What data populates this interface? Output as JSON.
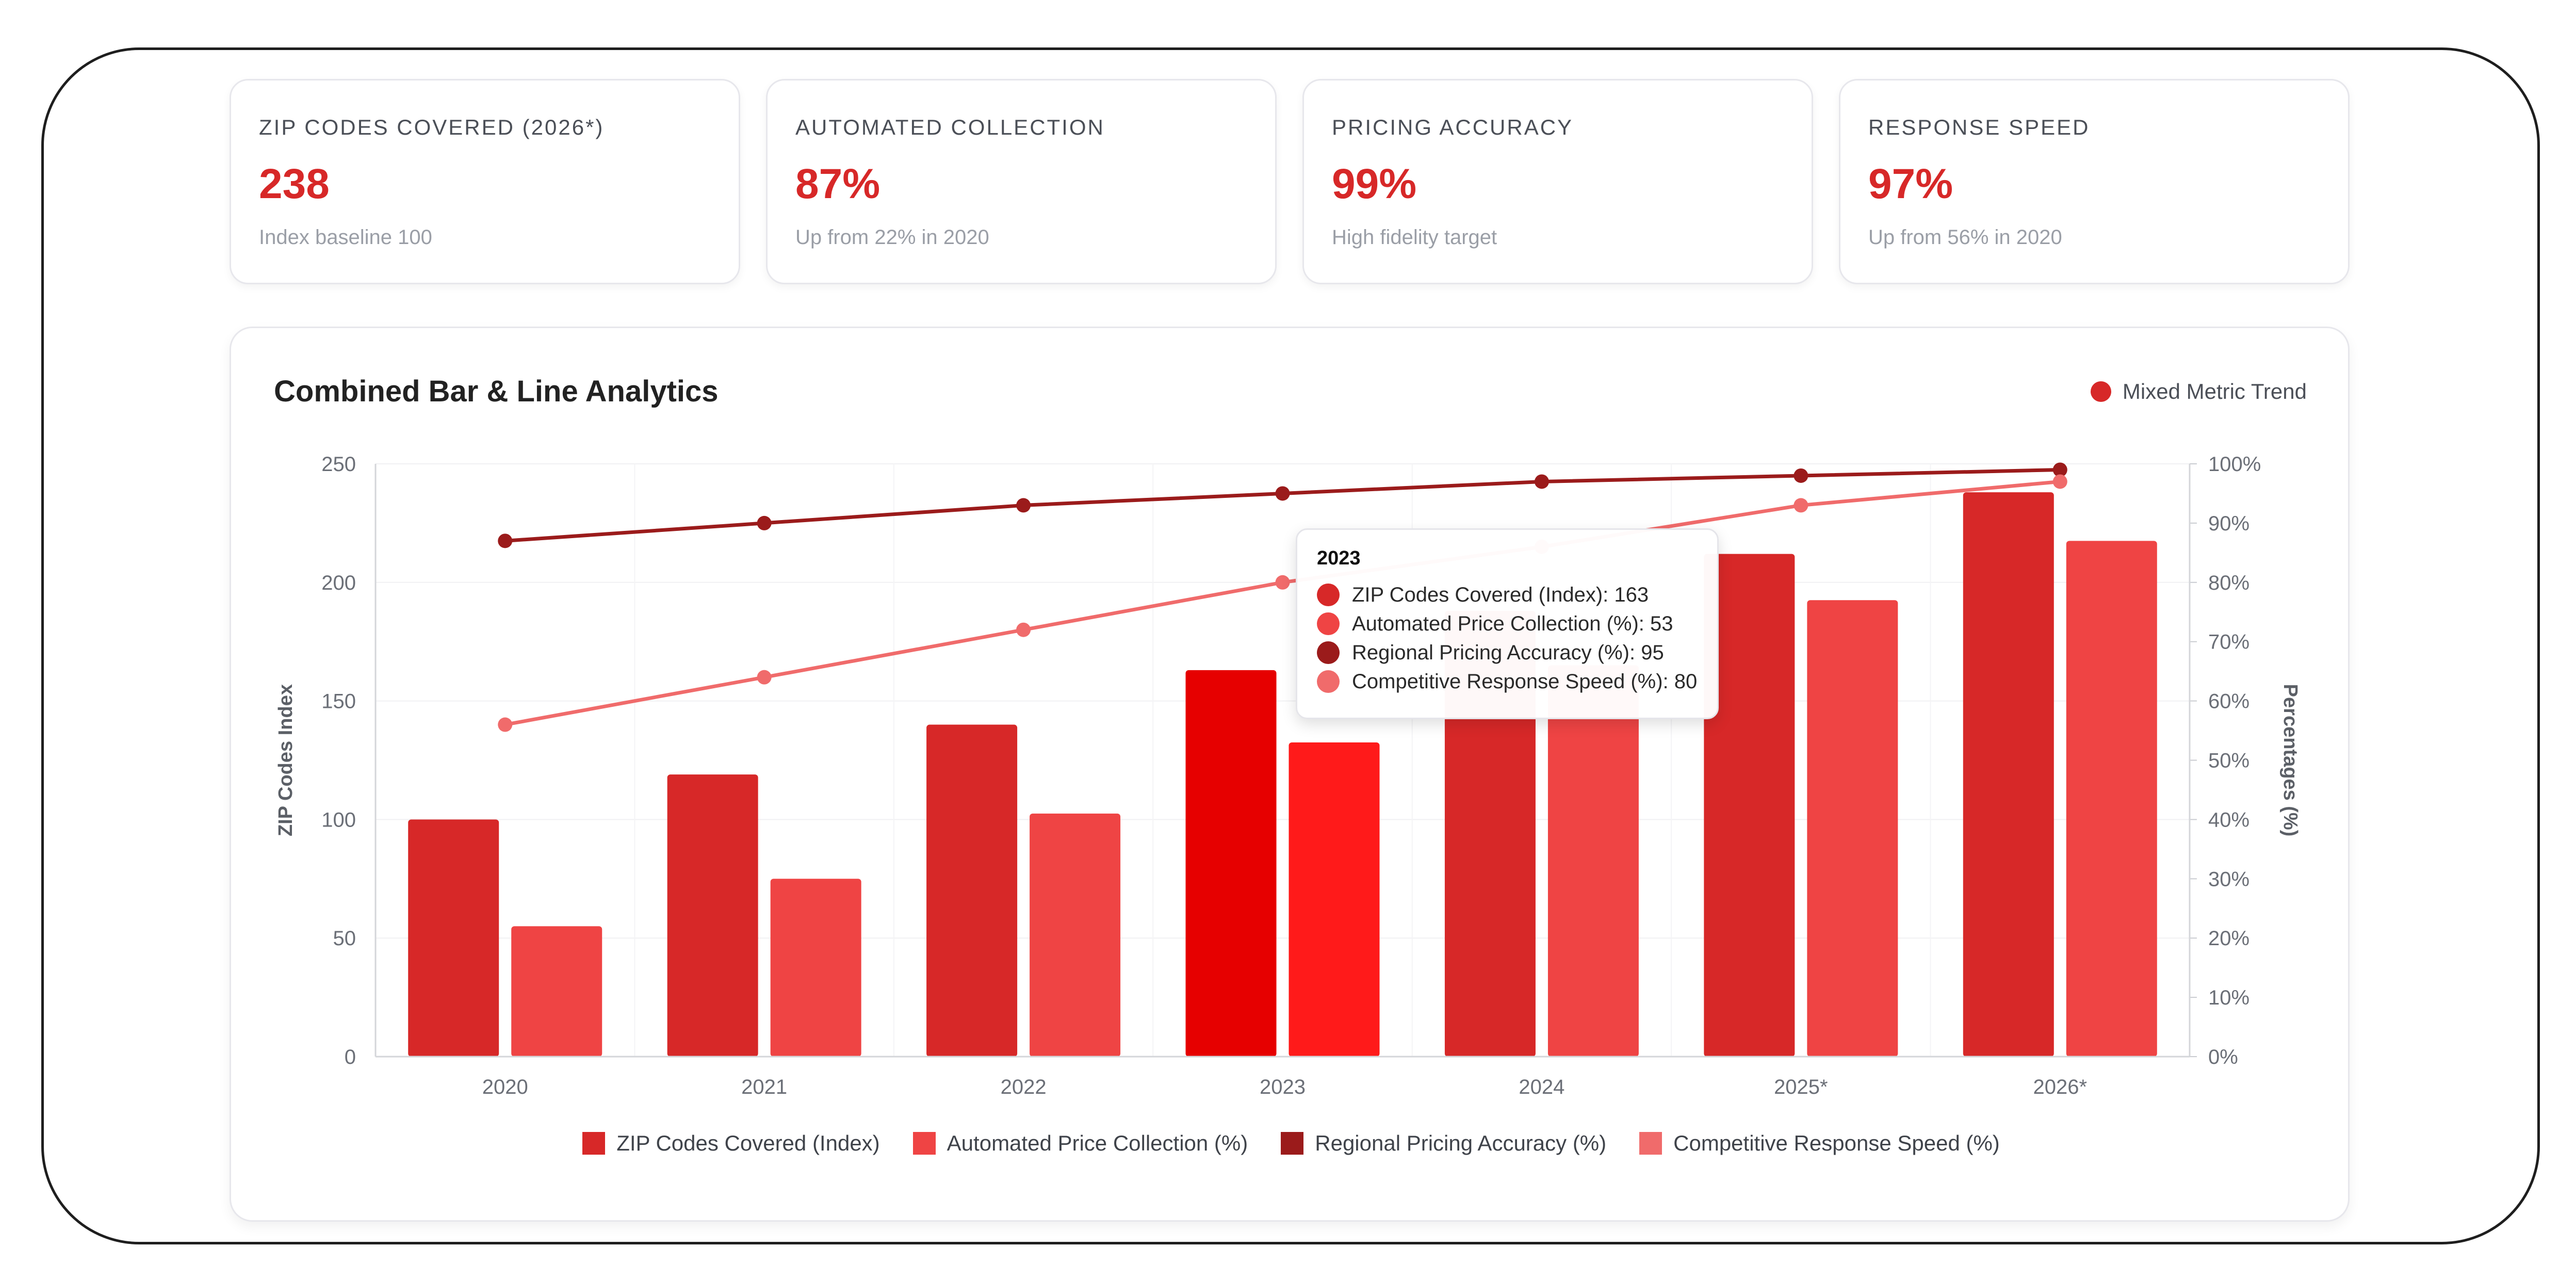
{
  "kpis": [
    {
      "label": "ZIP CODES COVERED (2026*)",
      "value": "238",
      "sub": "Index baseline 100"
    },
    {
      "label": "AUTOMATED COLLECTION",
      "value": "87%",
      "sub": "Up from 22% in 2020"
    },
    {
      "label": "PRICING ACCURACY",
      "value": "99%",
      "sub": "High fidelity target"
    },
    {
      "label": "RESPONSE SPEED",
      "value": "97%",
      "sub": "Up from 56% in 2020"
    }
  ],
  "chart_panel": {
    "title": "Combined Bar & Line Analytics",
    "trend_label": "Mixed Metric Trend",
    "trend_color": "#d72828"
  },
  "tooltip": {
    "title": "2023",
    "rows": [
      {
        "text": "ZIP Codes Covered (Index): 163",
        "color": "#d72828"
      },
      {
        "text": "Automated Price Collection (%): 53",
        "color": "#ef4444"
      },
      {
        "text": "Regional Pricing Accuracy (%): 95",
        "color": "#9b1b1b"
      },
      {
        "text": "Competitive Response Speed (%): 80",
        "color": "#f06b6b"
      }
    ]
  },
  "chart_data": {
    "type": "bar",
    "combo": "bar+line",
    "categories": [
      "2020",
      "2021",
      "2022",
      "2023",
      "2024",
      "2025*",
      "2026*"
    ],
    "highlighted_category": "2023",
    "ylabel_left": "ZIP Codes Index",
    "ylabel_right": "Percentages (%)",
    "y_left_range": [
      0,
      250
    ],
    "y_left_ticks": [
      "0",
      "50",
      "100",
      "150",
      "200",
      "250"
    ],
    "y_right_range": [
      0,
      100
    ],
    "y_right_ticks": [
      "0%",
      "10%",
      "20%",
      "30%",
      "40%",
      "50%",
      "60%",
      "70%",
      "80%",
      "90%",
      "100%"
    ],
    "grid": true,
    "legend_position": "bottom",
    "series": [
      {
        "name": "ZIP Codes Covered (Index)",
        "kind": "bar",
        "axis": "left",
        "color": "#d72828",
        "highlight_color": "#e60000",
        "values": [
          100,
          119,
          140,
          163,
          188,
          212,
          238
        ]
      },
      {
        "name": "Automated Price Collection (%)",
        "kind": "bar",
        "axis": "right",
        "color": "#ef4444",
        "highlight_color": "#ff1a1a",
        "values": [
          22,
          30,
          41,
          53,
          66,
          77,
          87
        ]
      },
      {
        "name": "Regional Pricing Accuracy (%)",
        "kind": "line",
        "axis": "right",
        "color": "#9b1b1b",
        "values": [
          87,
          90,
          93,
          95,
          97,
          98,
          99
        ]
      },
      {
        "name": "Competitive Response Speed (%)",
        "kind": "line",
        "axis": "right",
        "color": "#f06b6b",
        "values": [
          56,
          64,
          72,
          80,
          86,
          93,
          97
        ]
      }
    ]
  }
}
